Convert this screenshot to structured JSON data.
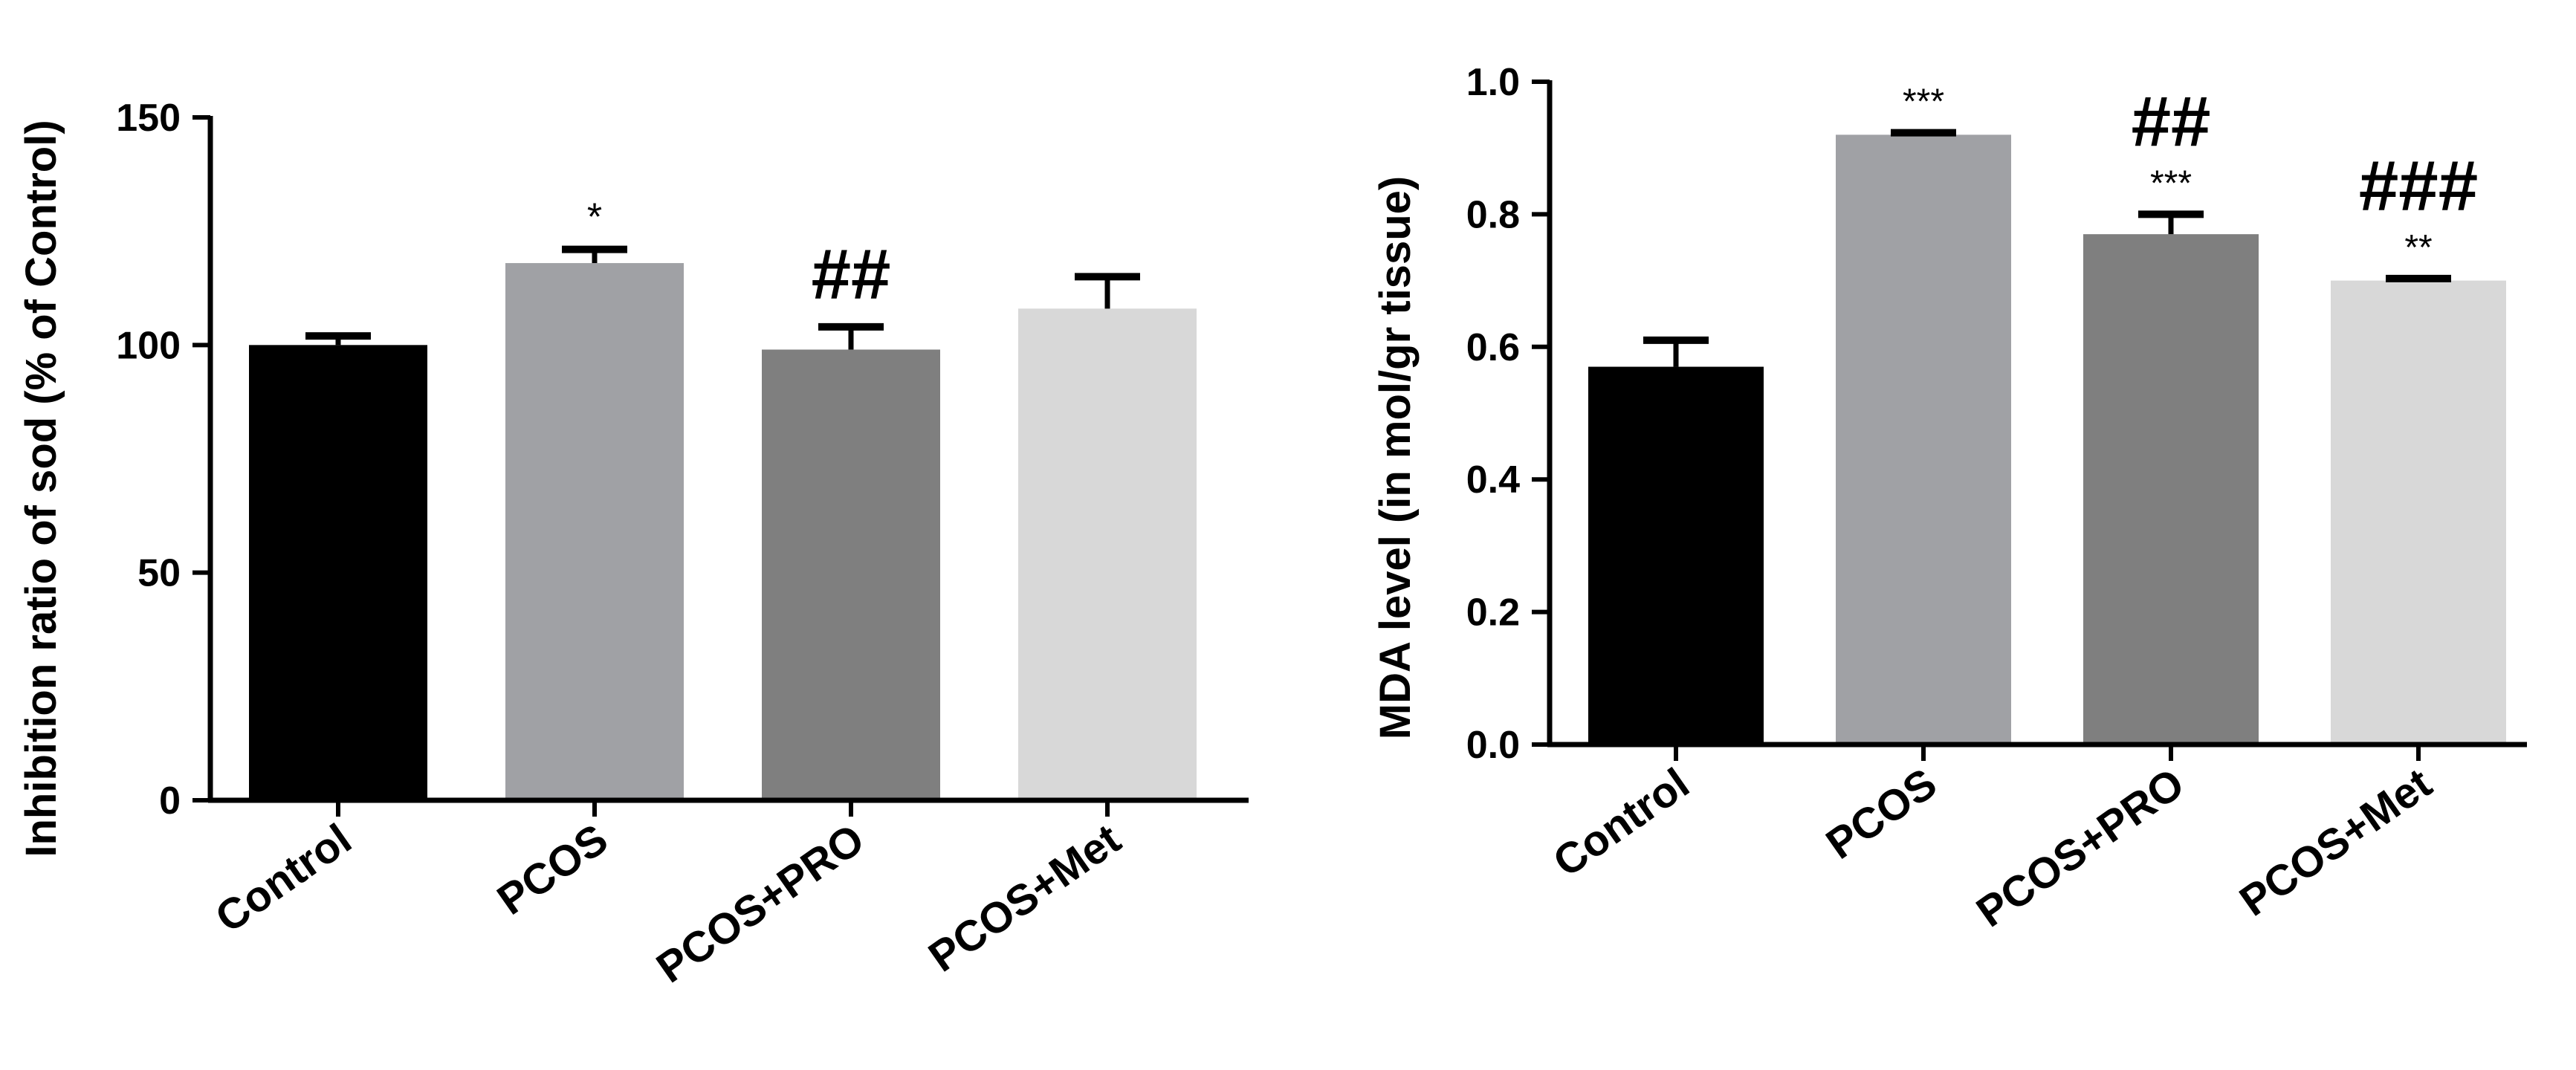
{
  "chart_data": [
    {
      "type": "bar",
      "title": "",
      "xlabel": "",
      "ylabel": "Inhibition ratio of sod (% of Control)",
      "ylim": [
        0,
        150
      ],
      "yticks": [
        "0",
        "50",
        "100",
        "150"
      ],
      "grid": false,
      "categories": [
        "Control",
        "PCOS",
        "PCOS+PRO",
        "PCOS+Met"
      ],
      "values": [
        100,
        118,
        99,
        108
      ],
      "error_upper": [
        2,
        3,
        5,
        7
      ],
      "bar_colors": [
        "#000000",
        "#a0a1a5",
        "#7f7f7f",
        "#d8d8d8"
      ],
      "annotations": [
        {
          "category": "PCOS",
          "stars": "*",
          "hashes": ""
        },
        {
          "category": "PCOS+PRO",
          "stars": "",
          "hashes": "##"
        }
      ]
    },
    {
      "type": "bar",
      "title": "",
      "xlabel": "",
      "ylabel": "MDA level (in mol/gr tissue)",
      "ylim": [
        0,
        1.0
      ],
      "yticks": [
        "0.0",
        "0.2",
        "0.4",
        "0.6",
        "0.8",
        "1.0"
      ],
      "grid": false,
      "categories": [
        "Control",
        "PCOS",
        "PCOS+PRO",
        "PCOS+Met"
      ],
      "values": [
        0.57,
        0.92,
        0.77,
        0.7
      ],
      "error_upper": [
        0.04,
        0.003,
        0.03,
        0.003
      ],
      "bar_colors": [
        "#000000",
        "#a0a1a5",
        "#7f7f7f",
        "#d8d8d8"
      ],
      "annotations": [
        {
          "category": "PCOS",
          "stars": "***",
          "hashes": ""
        },
        {
          "category": "PCOS+PRO",
          "stars": "***",
          "hashes": "##"
        },
        {
          "category": "PCOS+Met",
          "stars": "**",
          "hashes": "###"
        }
      ]
    }
  ]
}
